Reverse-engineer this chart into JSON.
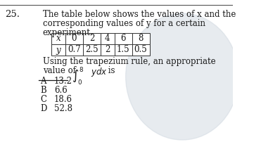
{
  "question_number": "25.",
  "q_line1": "The table below shows the values of x and the",
  "q_line2": "corresponding values of y for a certain",
  "q_line3": "experiment.",
  "x_header": "x",
  "y_header": "y",
  "x_values": [
    "0",
    "2",
    "4",
    "6",
    "8"
  ],
  "y_values": [
    "0.7",
    "2.5",
    "2",
    "1.5",
    "0.5"
  ],
  "int_line1": "Using the trapezium rule, an appropriate",
  "int_line2_pre": "value of ",
  "int_line2_post": " is",
  "options": [
    {
      "label": "A",
      "value": "13.2",
      "strikethrough": true
    },
    {
      "label": "B",
      "value": "6.6",
      "strikethrough": false
    },
    {
      "label": "C",
      "value": "18.6",
      "strikethrough": false
    },
    {
      "label": "D",
      "value": "52.8",
      "strikethrough": false
    }
  ],
  "bg_color": "#ffffff",
  "text_color": "#1a1a1a",
  "watermark_color": "#d0d8e0",
  "top_line_color": "#555555",
  "font_size_main": 8.5,
  "font_size_number": 9.5,
  "font_size_table": 8.5,
  "font_size_options": 8.5
}
